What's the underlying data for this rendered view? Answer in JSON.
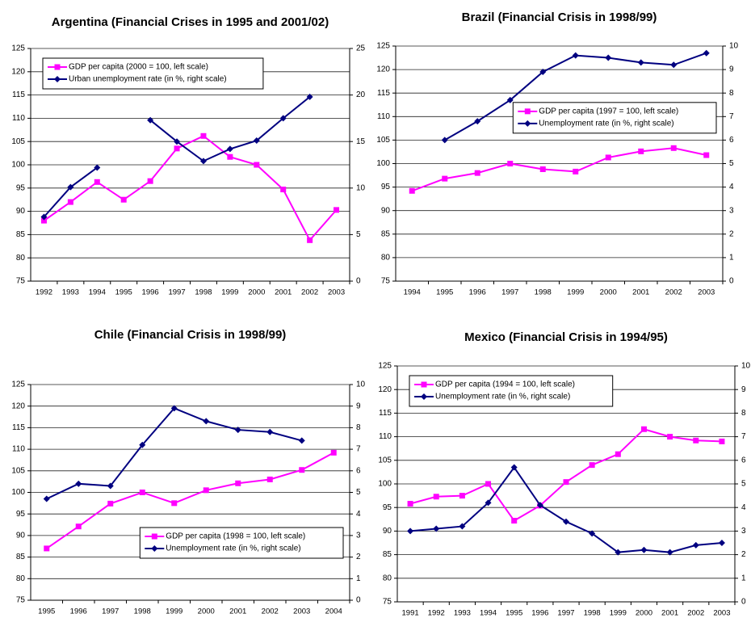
{
  "chart_data": [
    {
      "type": "line",
      "title": "Argentina (Financial Crises in 1995 and 2001/02)",
      "categories": [
        "1992",
        "1993",
        "1994",
        "1995",
        "1996",
        "1997",
        "1998",
        "1999",
        "2000",
        "2001",
        "2002",
        "2003"
      ],
      "series": [
        {
          "name": "GDP per capita (2000 = 100, left scale)",
          "color": "#ff00ff",
          "values": [
            88,
            92,
            96.3,
            92.5,
            96.5,
            103.5,
            106.2,
            101.7,
            100,
            94.7,
            83.8,
            90.3
          ]
        },
        {
          "name": "Urban unemployment rate (in %, right scale)",
          "color": "#000080",
          "axis": "y2",
          "values": [
            6.9,
            10.1,
            12.2,
            null,
            17.3,
            15.0,
            12.9,
            14.2,
            15.1,
            17.5,
            19.8,
            null
          ]
        }
      ],
      "ylim": [
        75,
        125
      ],
      "yticks": [
        75,
        80,
        85,
        90,
        95,
        100,
        105,
        110,
        115,
        120,
        125
      ],
      "y2lim": [
        0,
        25
      ],
      "y2ticks": [
        0,
        5,
        10,
        15,
        20,
        25
      ],
      "grid": true,
      "legend": "upper left"
    },
    {
      "type": "line",
      "title": "Brazil (Financial Crisis in 1998/99)",
      "categories": [
        "1994",
        "1995",
        "1996",
        "1997",
        "1998",
        "1999",
        "2000",
        "2001",
        "2002",
        "2003"
      ],
      "series": [
        {
          "name": "GDP per capita (1997 = 100, left scale)",
          "color": "#ff00ff",
          "values": [
            94.2,
            96.8,
            98,
            100,
            98.8,
            98.3,
            101.3,
            102.6,
            103.3,
            101.8
          ]
        },
        {
          "name": "Unemployment rate (in %, right scale)",
          "color": "#000080",
          "axis": "y2",
          "values": [
            null,
            6.0,
            6.8,
            7.7,
            8.9,
            9.6,
            9.5,
            9.3,
            9.2,
            9.7
          ]
        }
      ],
      "ylim": [
        75,
        125
      ],
      "yticks": [
        75,
        80,
        85,
        90,
        95,
        100,
        105,
        110,
        115,
        120,
        125
      ],
      "y2lim": [
        0,
        10
      ],
      "y2ticks": [
        0,
        1,
        2,
        3,
        4,
        5,
        6,
        7,
        8,
        9,
        10
      ],
      "grid": true,
      "legend": "center right"
    },
    {
      "type": "line",
      "title": "Chile (Financial Crisis in 1998/99)",
      "categories": [
        "1995",
        "1996",
        "1997",
        "1998",
        "1999",
        "2000",
        "2001",
        "2002",
        "2003",
        "2004"
      ],
      "series": [
        {
          "name": "GDP per capita (1998 = 100, left scale)",
          "color": "#ff00ff",
          "values": [
            87,
            92.1,
            97.4,
            100,
            97.5,
            100.5,
            102.1,
            103,
            105.2,
            109.2
          ]
        },
        {
          "name": "Unemployment rate (in %, right scale)",
          "color": "#000080",
          "axis": "y2",
          "values": [
            4.7,
            5.4,
            5.3,
            7.2,
            8.9,
            8.3,
            7.9,
            7.8,
            7.4,
            null
          ]
        }
      ],
      "ylim": [
        75,
        125
      ],
      "yticks": [
        75,
        80,
        85,
        90,
        95,
        100,
        105,
        110,
        115,
        120,
        125
      ],
      "y2lim": [
        0,
        10
      ],
      "y2ticks": [
        0,
        1,
        2,
        3,
        4,
        5,
        6,
        7,
        8,
        9,
        10
      ],
      "grid": true,
      "legend": "lower right"
    },
    {
      "type": "line",
      "title": "Mexico (Financial Crisis in 1994/95)",
      "categories": [
        "1991",
        "1992",
        "1993",
        "1994",
        "1995",
        "1996",
        "1997",
        "1998",
        "1999",
        "2000",
        "2001",
        "2002",
        "2003"
      ],
      "series": [
        {
          "name": "GDP per capita (1994 = 100, left scale)",
          "color": "#ff00ff",
          "values": [
            95.8,
            97.3,
            97.5,
            100,
            92.2,
            95.4,
            100.4,
            104,
            106.3,
            111.6,
            110,
            109.2,
            109
          ]
        },
        {
          "name": "Unemployment rate (in %, right scale)",
          "color": "#000080",
          "axis": "y2",
          "values": [
            3.0,
            3.1,
            3.2,
            4.2,
            5.7,
            4.1,
            3.4,
            2.9,
            2.1,
            2.2,
            2.1,
            2.4,
            2.5
          ]
        }
      ],
      "ylim": [
        75,
        125
      ],
      "yticks": [
        75,
        80,
        85,
        90,
        95,
        100,
        105,
        110,
        115,
        120,
        125
      ],
      "y2lim": [
        0,
        10
      ],
      "y2ticks": [
        0,
        1,
        2,
        3,
        4,
        5,
        6,
        7,
        8,
        9,
        10
      ],
      "grid": true,
      "legend": "upper left"
    }
  ]
}
